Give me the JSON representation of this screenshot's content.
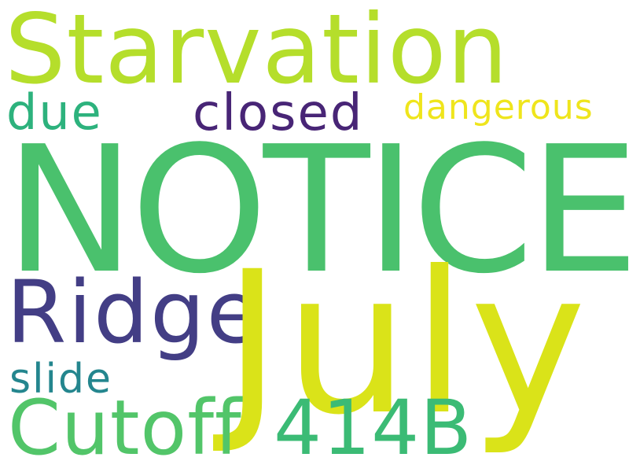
{
  "words": {
    "starvation": "Starvation",
    "due": "due",
    "closed": "closed",
    "dangerous": "dangerous",
    "notice": "NOTICE",
    "ridge": "Ridge",
    "july": "July",
    "slide": "slide",
    "cutoff": "Cutoff",
    "code": "414B"
  },
  "colors": {
    "starvation": "#b5de2b",
    "due": "#2db27d",
    "closed": "#482576",
    "dangerous": "#efe51c",
    "notice": "#4ac16d",
    "ridge": "#433e85",
    "july": "#dae319",
    "slide": "#24868e",
    "cutoff": "#52c569",
    "code": "#3bbb75",
    "background": "#ffffff"
  }
}
